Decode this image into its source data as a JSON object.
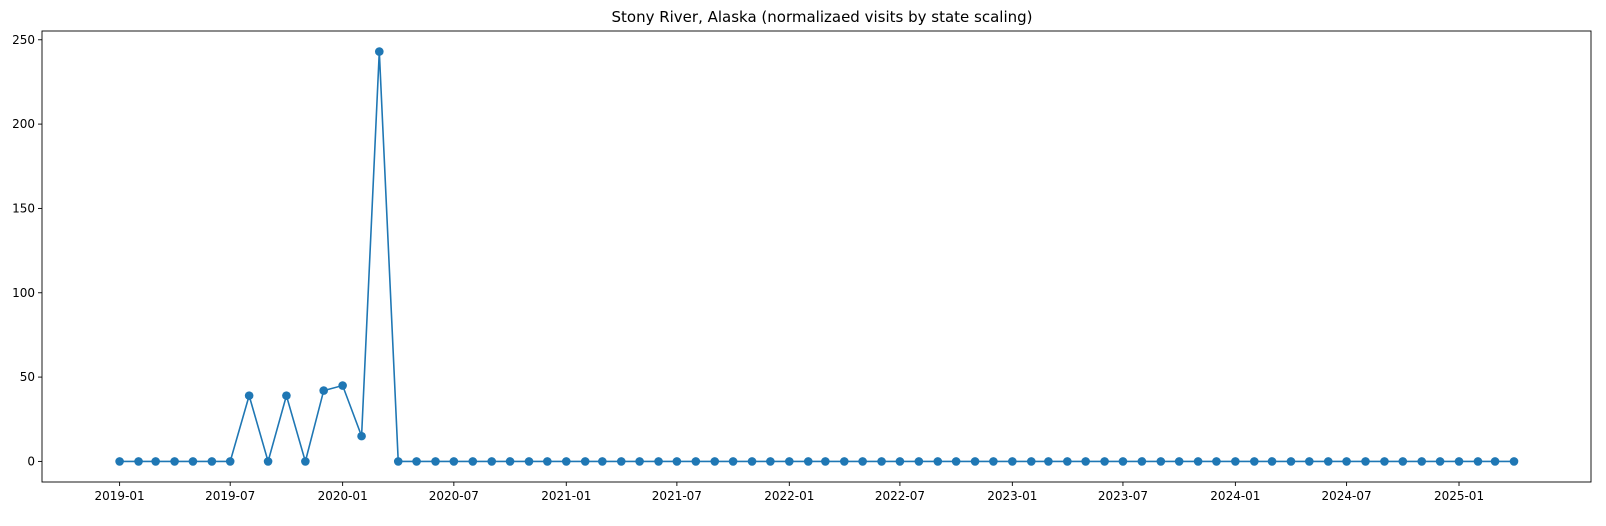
{
  "chart_data": {
    "type": "line",
    "title": "Stony River, Alaska (normalizaed visits by state scaling)",
    "xlabel": "",
    "ylabel": "",
    "x_start": "2019-01",
    "x": [
      "2019-01",
      "2019-02",
      "2019-03",
      "2019-04",
      "2019-05",
      "2019-06",
      "2019-07",
      "2019-08",
      "2019-09",
      "2019-10",
      "2019-11",
      "2019-12",
      "2020-01",
      "2020-02",
      "2020-03",
      "2020-04",
      "2020-05",
      "2020-06",
      "2020-07",
      "2020-08",
      "2020-09",
      "2020-10",
      "2020-11",
      "2020-12",
      "2021-01",
      "2021-02",
      "2021-03",
      "2021-04",
      "2021-05",
      "2021-06",
      "2021-07",
      "2021-08",
      "2021-09",
      "2021-10",
      "2021-11",
      "2021-12",
      "2022-01",
      "2022-02",
      "2022-03",
      "2022-04",
      "2022-05",
      "2022-06",
      "2022-07",
      "2022-08",
      "2022-09",
      "2022-10",
      "2022-11",
      "2022-12",
      "2023-01",
      "2023-02",
      "2023-03",
      "2023-04",
      "2023-05",
      "2023-06",
      "2023-07",
      "2023-08",
      "2023-09",
      "2023-10",
      "2023-11",
      "2023-12",
      "2024-01",
      "2024-02",
      "2024-03",
      "2024-04",
      "2024-05",
      "2024-06",
      "2024-07",
      "2024-08",
      "2024-09",
      "2024-10",
      "2024-11",
      "2024-12",
      "2025-01",
      "2025-02",
      "2025-03",
      "2025-04"
    ],
    "series": [
      {
        "values": [
          0,
          0,
          0,
          0,
          0,
          0,
          0,
          39,
          0,
          39,
          0,
          42,
          45,
          15,
          243,
          0,
          0,
          0,
          0,
          0,
          0,
          0,
          0,
          0,
          0,
          0,
          0,
          0,
          0,
          0,
          0,
          0,
          0,
          0,
          0,
          0,
          0,
          0,
          0,
          0,
          0,
          0,
          0,
          0,
          0,
          0,
          0,
          0,
          0,
          0,
          0,
          0,
          0,
          0,
          0,
          0,
          0,
          0,
          0,
          0,
          0,
          0,
          0,
          0,
          0,
          0,
          0,
          0,
          0,
          0,
          0,
          0,
          0,
          0,
          0,
          0
        ],
        "color": "#1f77b4"
      }
    ],
    "x_ticks": [
      "2019-01",
      "2019-07",
      "2020-01",
      "2020-07",
      "2021-01",
      "2021-07",
      "2022-01",
      "2022-07",
      "2023-01",
      "2023-07",
      "2024-01",
      "2024-07",
      "2025-01"
    ],
    "y_ticks": [
      0,
      50,
      100,
      150,
      200,
      250
    ],
    "ylim": [
      -12.2,
      255.2
    ],
    "xlim": [
      "2018-08-27",
      "2025-08-05"
    ],
    "grid": false,
    "legend": "none"
  }
}
